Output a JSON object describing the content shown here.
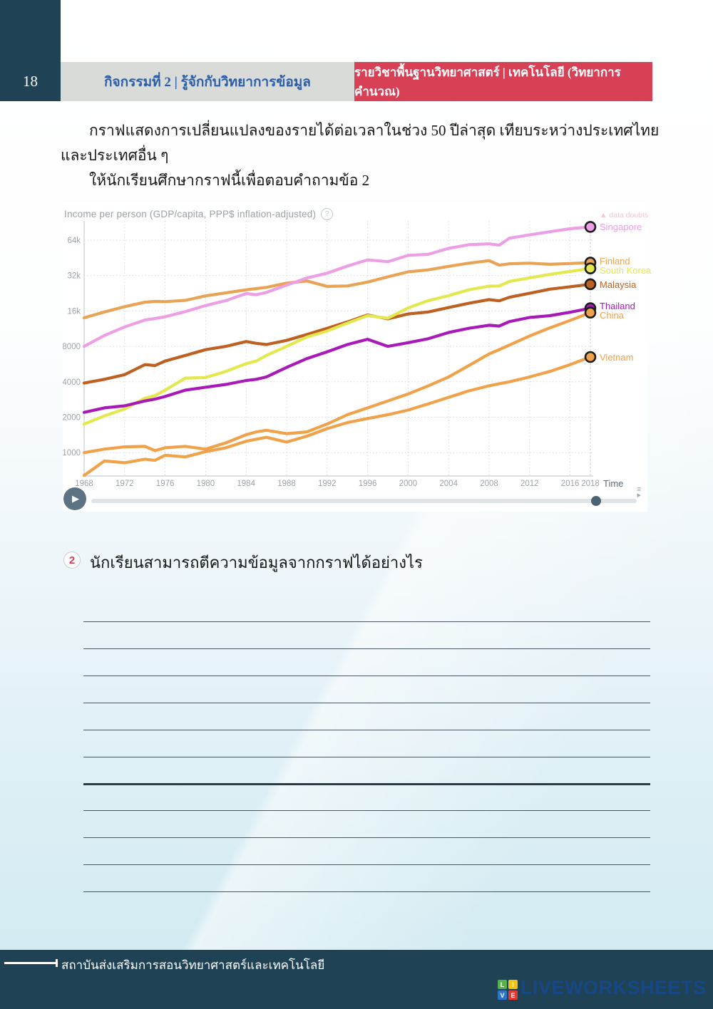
{
  "page": {
    "number": "18"
  },
  "header": {
    "activity_title": "กิจกรรมที่ 2 | รู้จักกับวิทยาการข้อมูล",
    "course_title": "รายวิชาพื้นฐานวิทยาศาสตร์ | เทคโนโลยี (วิทยาการคำนวณ)"
  },
  "intro": {
    "line1": "กราฟแสดงการเปลี่ยนแปลงของรายได้ต่อเวลาในช่วง 50 ปีล่าสุด เทียบระหว่างประเทศไทย",
    "line2": "และประเทศอื่น ๆ",
    "line3": "ให้นักเรียนศึกษากราฟนี้เพื่อตอบคำถามข้อ 2"
  },
  "chart": {
    "title": "Income per person (GDP/capita, PPP$ inflation-adjusted)",
    "help_icon": "?",
    "data_doubts": "▲ data doubts",
    "time_label": "Time",
    "play_icon": "▶",
    "options_icon": "≡",
    "options_arrow": "▸",
    "current_year": 2018
  },
  "chart_data": {
    "type": "line",
    "title": "Income per person (GDP/capita, PPP$ inflation-adjusted)",
    "xlabel": "Time",
    "y_scale": "log",
    "xlim": [
      1968,
      2018
    ],
    "ylim": [
      630,
      97000
    ],
    "grid": true,
    "legend_position": "right",
    "x_ticks": [
      "1968",
      "1972",
      "1976",
      "1980",
      "1984",
      "1988",
      "1992",
      "1996",
      "2000",
      "2004",
      "2008",
      "2012",
      "2016",
      "2018"
    ],
    "y_ticks": [
      {
        "label": "64k",
        "value": 64000
      },
      {
        "label": "32k",
        "value": 32000
      },
      {
        "label": "16k",
        "value": 16000
      },
      {
        "label": "8000",
        "value": 8000
      },
      {
        "label": "4000",
        "value": 4000
      },
      {
        "label": "2000",
        "value": 2000
      },
      {
        "label": "1000",
        "value": 1000
      }
    ],
    "x": [
      1968,
      1970,
      1972,
      1974,
      1975,
      1976,
      1978,
      1980,
      1982,
      1984,
      1985,
      1986,
      1988,
      1990,
      1992,
      1994,
      1996,
      1998,
      2000,
      2002,
      2004,
      2006,
      2008,
      2009,
      2010,
      2012,
      2014,
      2016,
      2018
    ],
    "series": [
      {
        "name": "Singapore",
        "color": "#ec9fe4",
        "values": [
          8000,
          9900,
          11700,
          13400,
          13800,
          14300,
          15800,
          17800,
          19600,
          22500,
          22000,
          23000,
          26500,
          30500,
          33500,
          38500,
          43500,
          42000,
          47500,
          48500,
          54500,
          58500,
          59500,
          58000,
          66500,
          71000,
          75500,
          80000,
          83000
        ]
      },
      {
        "name": "Finland",
        "color": "#e8a355",
        "values": [
          14000,
          15700,
          17400,
          19000,
          19300,
          19200,
          19700,
          21500,
          22800,
          24200,
          24800,
          25400,
          27600,
          28800,
          25900,
          26100,
          28200,
          31200,
          34400,
          35800,
          38300,
          40800,
          42800,
          39200,
          40300,
          40800,
          39900,
          40500,
          41200
        ]
      },
      {
        "name": "South Korea",
        "color": "#e2e84e",
        "values": [
          1750,
          2050,
          2350,
          2900,
          3050,
          3400,
          4300,
          4350,
          4900,
          5700,
          6000,
          6700,
          8000,
          9600,
          10800,
          12600,
          14600,
          13900,
          17000,
          19600,
          21600,
          24200,
          26000,
          26100,
          28500,
          30600,
          32700,
          34700,
          36800
        ]
      },
      {
        "name": "Malaysia",
        "color": "#bd6021",
        "values": [
          3900,
          4200,
          4600,
          5600,
          5500,
          6000,
          6700,
          7500,
          8000,
          8800,
          8500,
          8300,
          9000,
          10100,
          11400,
          12900,
          14800,
          13700,
          15100,
          15700,
          17100,
          18600,
          20000,
          19500,
          20900,
          22600,
          24500,
          25700,
          27000
        ]
      },
      {
        "name": "Thailand",
        "color": "#a81ab8",
        "values": [
          2200,
          2400,
          2500,
          2750,
          2850,
          3000,
          3400,
          3600,
          3800,
          4100,
          4200,
          4400,
          5300,
          6300,
          7200,
          8300,
          9200,
          8000,
          8600,
          9300,
          10500,
          11400,
          12100,
          11900,
          13000,
          14100,
          14600,
          15600,
          16900
        ]
      },
      {
        "name": "China",
        "color": "#f0a24b",
        "values": [
          1000,
          1070,
          1120,
          1130,
          1040,
          1100,
          1130,
          1070,
          1210,
          1420,
          1500,
          1550,
          1450,
          1500,
          1750,
          2100,
          2400,
          2750,
          3150,
          3700,
          4400,
          5500,
          6900,
          7500,
          8200,
          9800,
          11500,
          13300,
          15500
        ]
      },
      {
        "name": "Vietnam",
        "color": "#f0a24b",
        "values": [
          640,
          850,
          820,
          880,
          860,
          950,
          920,
          1020,
          1100,
          1250,
          1300,
          1350,
          1230,
          1380,
          1600,
          1800,
          1950,
          2100,
          2300,
          2600,
          2950,
          3350,
          3700,
          3850,
          4000,
          4400,
          4900,
          5600,
          6500
        ]
      }
    ]
  },
  "question": {
    "number": "2",
    "text": "นักเรียนสามารถตีความข้อมูลจากกราฟได้อย่างไร"
  },
  "answer_lines": {
    "count": 11,
    "bold_line": 7
  },
  "footer": {
    "institute": "สถาบันส่งเสริมการสอนวิทยาศาสตร์และเทคโนโลยี",
    "logo_letters": [
      "L",
      "I",
      "V",
      "E"
    ],
    "logo_colors": [
      "#58b24c",
      "#f2c313",
      "#2f74c9",
      "#e23b33"
    ],
    "wordmark": "LIVEWORKSHEETS"
  }
}
